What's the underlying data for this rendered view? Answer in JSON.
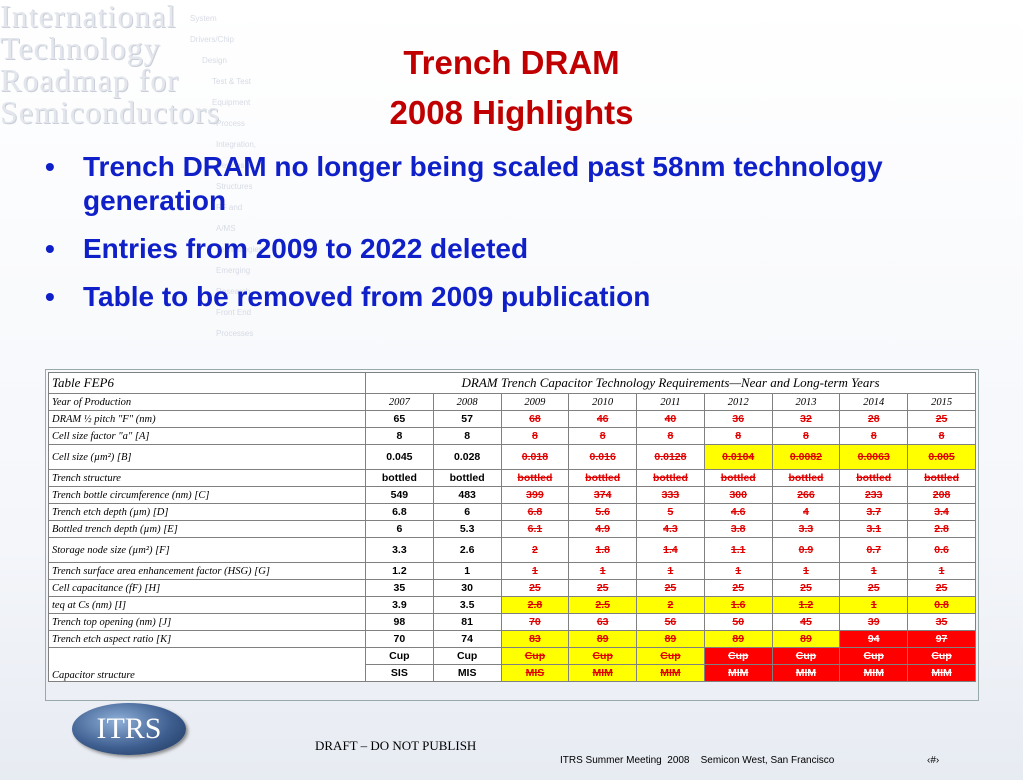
{
  "watermark": {
    "lines": [
      "International",
      "Technology",
      "Roadmap for",
      "Semiconductors"
    ],
    "items": [
      "System Drivers/Chip",
      "Design",
      "Test & Test Equipment",
      "Process Integration, Devices, & Structures",
      "RF and A/MS Technologies",
      "Emerging Research",
      "Front End Processes"
    ]
  },
  "title": {
    "line1": "Trench DRAM",
    "line2": "2008 Highlights"
  },
  "bullets": [
    "Trench DRAM no longer being scaled past 58nm technology generation",
    "Entries from 2009 to 2022 deleted",
    "Table to be removed from 2009 publication"
  ],
  "table": {
    "name": "Table FEP6",
    "caption": "DRAM Trench Capacitor Technology Requirements—Near and Long-term Years",
    "year_label": "Year of Production",
    "years": [
      "2007",
      "2008",
      "2009",
      "2010",
      "2011",
      "2012",
      "2013",
      "2014",
      "2015"
    ],
    "rows": [
      {
        "label": "DRAM ½ pitch \"F\" (nm)",
        "values": [
          "65",
          "57",
          "68",
          "46",
          "40",
          "36",
          "32",
          "28",
          "25"
        ],
        "hl": [
          "",
          "",
          "",
          "",
          "",
          "",
          "",
          "",
          ""
        ]
      },
      {
        "label": "Cell size factor \"a\" [A]",
        "values": [
          "8",
          "8",
          "8",
          "8",
          "8",
          "8",
          "8",
          "8",
          "8"
        ],
        "hl": [
          "",
          "",
          "",
          "",
          "",
          "",
          "",
          "",
          ""
        ]
      },
      {
        "label": "Cell size (µm²) [B]",
        "values": [
          "0.045",
          "0.028",
          "0.018",
          "0.016",
          "0.0128",
          "0.0104",
          "0.0082",
          "0.0063",
          "0.005"
        ],
        "hl": [
          "",
          "",
          "",
          "",
          "",
          "y",
          "y",
          "y",
          "y"
        ],
        "tall": true
      },
      {
        "label": "Trench structure",
        "values": [
          "bottled",
          "bottled",
          "bottled",
          "bottled",
          "bottled",
          "bottled",
          "bottled",
          "bottled",
          "bottled"
        ],
        "hl": [
          "",
          "",
          "",
          "",
          "",
          "",
          "",
          "",
          ""
        ]
      },
      {
        "label": "Trench bottle circumference (nm) [C]",
        "values": [
          "549",
          "483",
          "399",
          "374",
          "333",
          "300",
          "266",
          "233",
          "208"
        ],
        "hl": [
          "",
          "",
          "",
          "",
          "",
          "",
          "",
          "",
          ""
        ]
      },
      {
        "label": "Trench etch depth (µm) [D]",
        "values": [
          "6.8",
          "6",
          "6.8",
          "5.6",
          "5",
          "4.6",
          "4",
          "3.7",
          "3.4"
        ],
        "hl": [
          "",
          "",
          "",
          "",
          "",
          "",
          "",
          "",
          ""
        ]
      },
      {
        "label": "Bottled trench depth (µm) [E]",
        "values": [
          "6",
          "5.3",
          "6.1",
          "4.9",
          "4.3",
          "3.8",
          "3.3",
          "3.1",
          "2.8"
        ],
        "hl": [
          "",
          "",
          "",
          "",
          "",
          "",
          "",
          "",
          ""
        ]
      },
      {
        "label": "Storage node size (µm²) [F]",
        "values": [
          "3.3",
          "2.6",
          "2",
          "1.8",
          "1.4",
          "1.1",
          "0.9",
          "0.7",
          "0.6"
        ],
        "hl": [
          "",
          "",
          "",
          "",
          "",
          "",
          "",
          "",
          ""
        ],
        "tall": true
      },
      {
        "label": "Trench surface area enhancement factor (HSG) [G]",
        "values": [
          "1.2",
          "1",
          "1",
          "1",
          "1",
          "1",
          "1",
          "1",
          "1"
        ],
        "hl": [
          "",
          "",
          "",
          "",
          "",
          "",
          "",
          "",
          ""
        ]
      },
      {
        "label": "Cell capacitance (fF) [H]",
        "values": [
          "35",
          "30",
          "25",
          "25",
          "25",
          "25",
          "25",
          "25",
          "25"
        ],
        "hl": [
          "",
          "",
          "",
          "",
          "",
          "",
          "",
          "",
          ""
        ]
      },
      {
        "label": "teq at Cs (nm) [I]",
        "values": [
          "3.9",
          "3.5",
          "2.8",
          "2.5",
          "2",
          "1.6",
          "1.2",
          "1",
          "0.8"
        ],
        "hl": [
          "",
          "",
          "y",
          "y",
          "y",
          "y",
          "y",
          "y",
          "y"
        ]
      },
      {
        "label": "Trench top opening (nm) [J]",
        "values": [
          "98",
          "81",
          "70",
          "63",
          "56",
          "50",
          "45",
          "39",
          "35"
        ],
        "hl": [
          "",
          "",
          "",
          "",
          "",
          "",
          "",
          "",
          ""
        ]
      },
      {
        "label": "Trench etch aspect ratio [K]",
        "values": [
          "70",
          "74",
          "83",
          "89",
          "89",
          "89",
          "89",
          "94",
          "97"
        ],
        "hl": [
          "",
          "",
          "y",
          "y",
          "y",
          "y",
          "y",
          "r",
          "r"
        ]
      }
    ],
    "cap_label": "Capacitor structure",
    "cap_row1": [
      "Cup",
      "Cup",
      "Cup",
      "Cup",
      "Cup",
      "Cup",
      "Cup",
      "Cup",
      "Cup"
    ],
    "cap_row1_hl": [
      "",
      "",
      "y",
      "y",
      "y",
      "r",
      "r",
      "r",
      "r"
    ],
    "cap_row2": [
      "SIS",
      "MIS",
      "MIS",
      "MIM",
      "MIM",
      "MIM",
      "MIM",
      "MIM",
      "MIM"
    ],
    "cap_row2_hl": [
      "",
      "",
      "y",
      "y",
      "y",
      "r",
      "r",
      "r",
      "r"
    ]
  },
  "logo": "ITRS",
  "draft": "DRAFT – DO NOT PUBLISH",
  "footer": "ITRS Summer Meeting  2008    Semicon West, San Francisco",
  "slide_number": "‹#›",
  "colors": {
    "title": "#c00000",
    "bullet": "#1020c8",
    "highlight_yellow": "#ffff00",
    "highlight_red": "#ff0000",
    "deleted_text": "#e00000"
  }
}
